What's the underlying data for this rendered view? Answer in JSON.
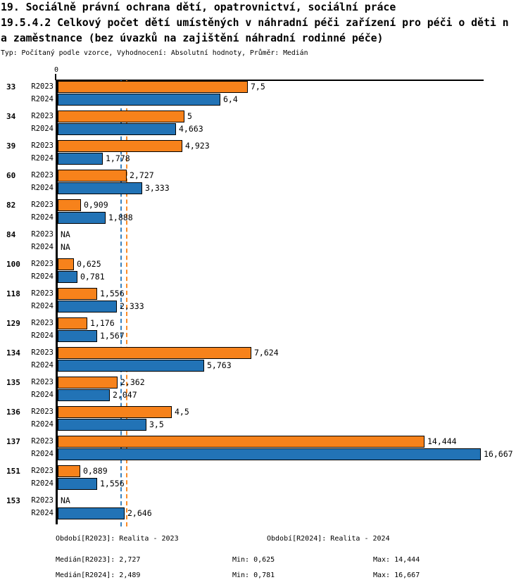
{
  "title": {
    "line1": "19. Sociálně právní ochrana dětí, opatrovnictví, sociální práce",
    "line2": "19.5.4.2 Celkový počet dětí umístěných v náhradní péči zařízení pro péči o děti n",
    "line3": "a zaměstnance (bez úvazků na zajištění náhradní rodinné péče)",
    "meta": "Typ: Počítaný podle vzorce, Vyhodnocení: Absolutní hodnoty, Průměr: Medián"
  },
  "chart_data": {
    "type": "bar",
    "orientation": "horizontal",
    "title": "19.5.4.2 Celkový počet dětí umístěných v náhradní péči zařízení pro péči o děti na zaměstnance (bez úvazků na zajištění náhradní rodinné péče)",
    "axis": {
      "zero_label": "0",
      "xlim": [
        0,
        16.8
      ],
      "grid": false
    },
    "na_text": "NA",
    "series": [
      {
        "name": "R2023",
        "color": "#F7821B",
        "median": 2.727
      },
      {
        "name": "R2024",
        "color": "#2273B6",
        "median": 2.489
      }
    ],
    "median_line_colors": {
      "R2023": "#FB8C28",
      "R2024": "#3B82BD"
    },
    "groups": [
      {
        "category": "33",
        "values": [
          7.5,
          6.4
        ],
        "labels": [
          "7,5",
          "6,4"
        ]
      },
      {
        "category": "34",
        "values": [
          5,
          4.663
        ],
        "labels": [
          "5",
          "4,663"
        ]
      },
      {
        "category": "39",
        "values": [
          4.923,
          1.778
        ],
        "labels": [
          "4,923",
          "1,778"
        ]
      },
      {
        "category": "60",
        "values": [
          2.727,
          3.333
        ],
        "labels": [
          "2,727",
          "3,333"
        ]
      },
      {
        "category": "82",
        "values": [
          0.909,
          1.888
        ],
        "labels": [
          "0,909",
          "1,888"
        ]
      },
      {
        "category": "84",
        "values": [
          null,
          null
        ],
        "labels": [
          "NA",
          "NA"
        ]
      },
      {
        "category": "100",
        "values": [
          0.625,
          0.781
        ],
        "labels": [
          "0,625",
          "0,781"
        ]
      },
      {
        "category": "118",
        "values": [
          1.556,
          2.333
        ],
        "labels": [
          "1,556",
          "2,333"
        ]
      },
      {
        "category": "129",
        "values": [
          1.176,
          1.567
        ],
        "labels": [
          "1,176",
          "1,567"
        ]
      },
      {
        "category": "134",
        "values": [
          7.624,
          5.763
        ],
        "labels": [
          "7,624",
          "5,763"
        ]
      },
      {
        "category": "135",
        "values": [
          2.362,
          2.047
        ],
        "labels": [
          "2,362",
          "2,047"
        ]
      },
      {
        "category": "136",
        "values": [
          4.5,
          3.5
        ],
        "labels": [
          "4,5",
          "3,5"
        ]
      },
      {
        "category": "137",
        "values": [
          14.444,
          16.667
        ],
        "labels": [
          "14,444",
          "16,667"
        ]
      },
      {
        "category": "151",
        "values": [
          0.889,
          1.556
        ],
        "labels": [
          "0,889",
          "1,556"
        ]
      },
      {
        "category": "153",
        "values": [
          null,
          2.646
        ],
        "labels": [
          "NA",
          "2,646"
        ]
      }
    ]
  },
  "footer": {
    "obdobi_r2023": "Období[R2023]: Realita - 2023",
    "obdobi_r2024": "Období[R2024]: Realita - 2024",
    "median_r2023": "Medián[R2023]: 2,727",
    "median_r2024": "Medián[R2024]: 2,489",
    "min_r2023": "Min: 0,625",
    "min_r2024": "Min: 0,781",
    "max_r2023": "Max: 14,444",
    "max_r2024": "Max: 16,667"
  }
}
